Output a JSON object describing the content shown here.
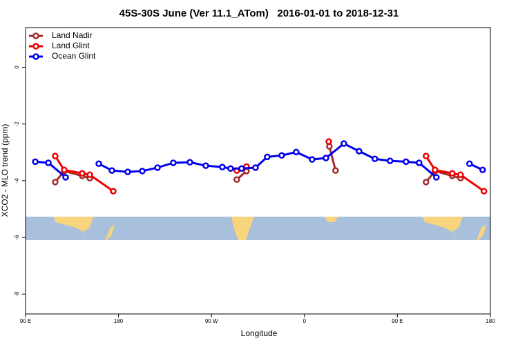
{
  "chart_data": {
    "type": "line",
    "title": "45S-30S June (Ver 11.1_ATom)   2016-01-01 to 2018-12-31",
    "xlabel": "Longitude",
    "ylabel": "XCO2 - MLO trend (ppm)",
    "xlim": [
      90,
      540
    ],
    "ylim": [
      -8.7,
      1.4
    ],
    "xticks": [
      {
        "value": 90,
        "label": "90 E"
      },
      180,
      {
        "value": 270,
        "label": "90 W"
      },
      {
        "value": 360,
        "label": "0"
      },
      {
        "value": 450,
        "label": "90 E"
      },
      {
        "value": 540,
        "label": "180"
      }
    ],
    "yticks": [
      0,
      -2,
      -4,
      -6,
      -8
    ],
    "legend": "top-left",
    "series": [
      {
        "name": "Land Nadir",
        "color": "#a52a2a",
        "x": [
          118.7,
          127.4,
          144.8,
          152.2,
          null,
          294.5,
          303.9,
          null,
          384.1,
          390.1,
          null,
          477.7,
          486.4,
          503.1,
          511.1
        ],
        "values": [
          -4.05,
          -3.66,
          -3.83,
          -3.91,
          null,
          -3.96,
          -3.66,
          null,
          -2.79,
          -3.64,
          null,
          -4.05,
          -3.66,
          -3.83,
          -3.91
        ]
      },
      {
        "name": "Land Glint",
        "color": "#ee0000",
        "x": [
          118.7,
          127.4,
          144.8,
          152.2,
          174.9,
          null,
          294.5,
          303.9,
          null,
          383.5,
          null,
          477.7,
          486.4,
          503.1,
          511.1,
          533.8
        ],
        "values": [
          -3.13,
          -3.62,
          -3.74,
          -3.79,
          -4.37,
          null,
          -3.64,
          -3.5,
          null,
          -2.62,
          null,
          -3.13,
          -3.62,
          -3.74,
          -3.79,
          -4.37
        ]
      },
      {
        "name": "Ocean Glint",
        "color": "#0000ee",
        "x": [
          99.4,
          112.1,
          128.8,
          null,
          160.9,
          173.6,
          188.9,
          203.0,
          217.7,
          233.0,
          249.1,
          264.5,
          280.5,
          288.5,
          299.2,
          312.6,
          324.0,
          338.0,
          352.0,
          367.4,
          380.8,
          398.2,
          412.9,
          428.2,
          442.9,
          458.3,
          471.0,
          487.7,
          null,
          519.8,
          532.5
        ],
        "values": [
          -3.33,
          -3.37,
          -3.88,
          null,
          -3.4,
          -3.64,
          -3.69,
          -3.66,
          -3.54,
          -3.37,
          -3.35,
          -3.47,
          -3.52,
          -3.57,
          -3.57,
          -3.54,
          -3.16,
          -3.11,
          -2.99,
          -3.25,
          -3.2,
          -2.69,
          -2.96,
          -3.23,
          -3.3,
          -3.33,
          -3.37,
          -3.88,
          null,
          -3.4,
          -3.62
        ]
      }
    ]
  }
}
